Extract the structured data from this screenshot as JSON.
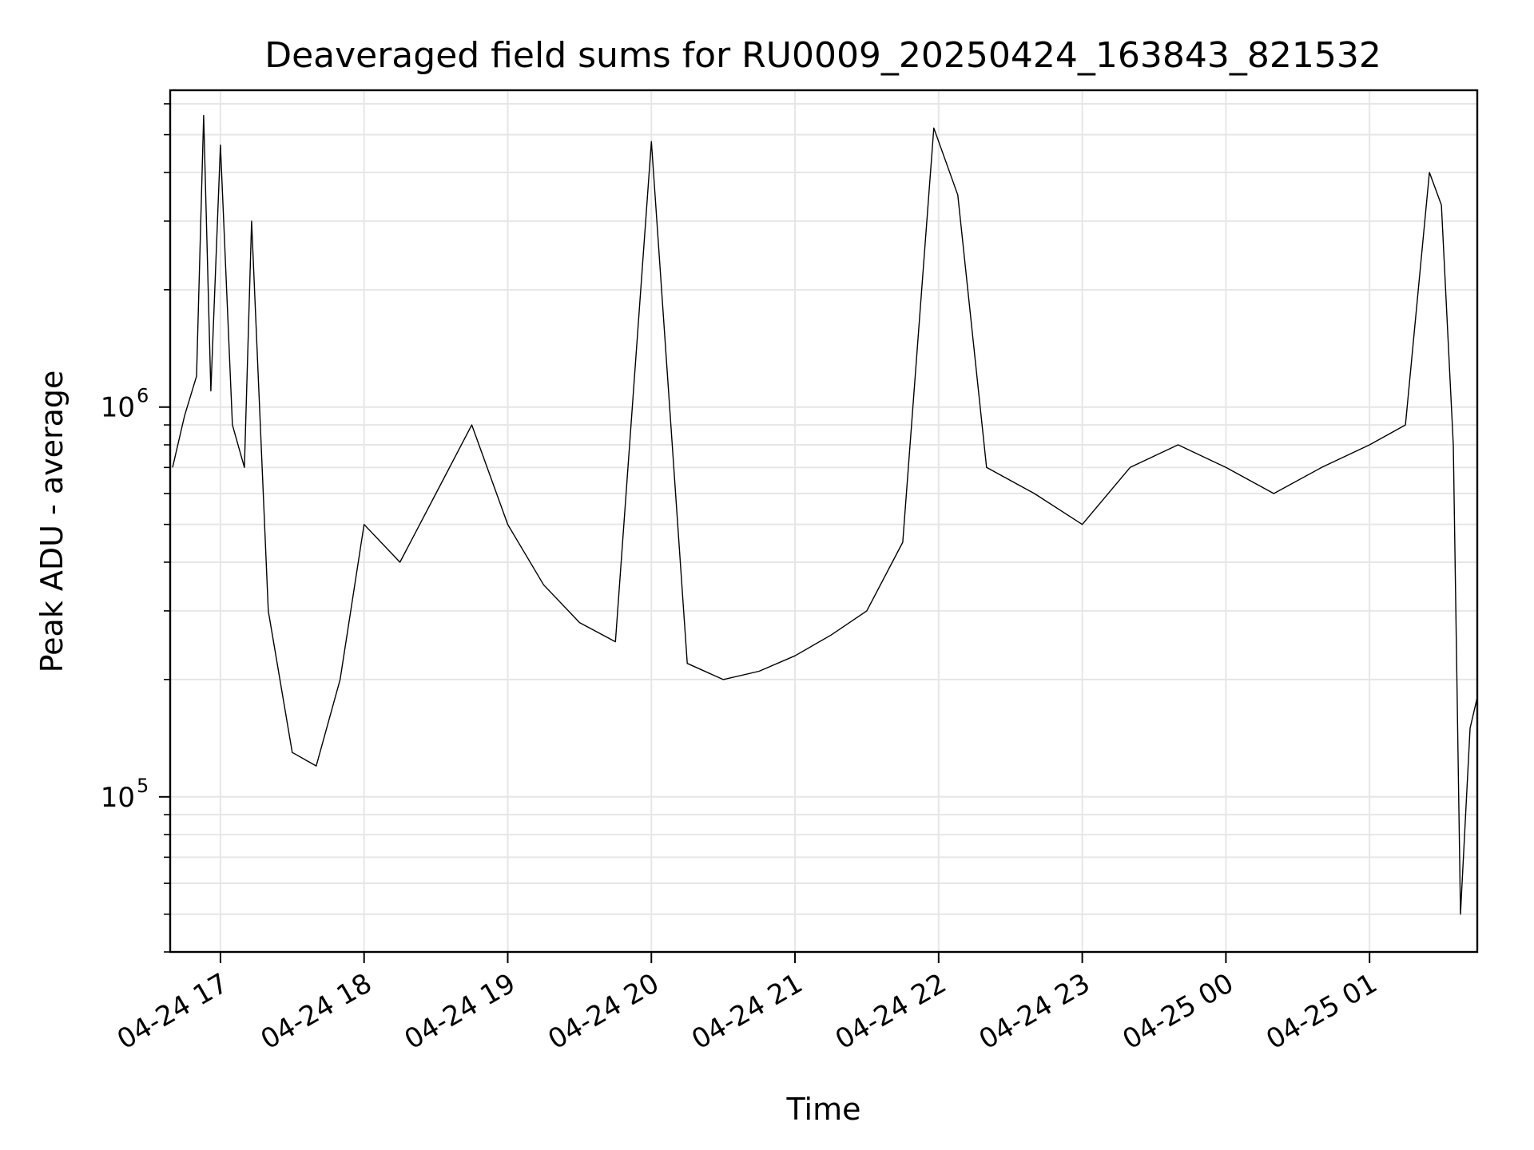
{
  "chart_data": {
    "type": "line",
    "title": "Deaveraged field sums for RU0009_20250424_163843_821532",
    "xlabel": "Time",
    "ylabel": "Peak ADU - average",
    "x_axis": "time",
    "xlim": [
      "2025-04-24 16:39",
      "2025-04-25 01:45"
    ],
    "y_scale": "log",
    "ylim": [
      40000,
      6500000
    ],
    "grid": true,
    "legend": "none",
    "line_color": "#000000",
    "x_ticks": [
      "04-24 17",
      "04-24 18",
      "04-24 19",
      "04-24 20",
      "04-24 21",
      "04-24 22",
      "04-24 23",
      "04-25 00",
      "04-25 01"
    ],
    "y_ticks": [
      {
        "value": 100000,
        "base": "10",
        "exp": "5"
      },
      {
        "value": 1000000,
        "base": "10",
        "exp": "6"
      }
    ],
    "series": [
      {
        "values": [
          [
            "2025-04-24 16:40",
            700000
          ],
          [
            "2025-04-24 16:45",
            950000
          ],
          [
            "2025-04-24 16:50",
            1200000
          ],
          [
            "2025-04-24 16:53",
            5600000
          ],
          [
            "2025-04-24 16:56",
            1100000
          ],
          [
            "2025-04-24 17:00",
            4700000
          ],
          [
            "2025-04-24 17:05",
            900000
          ],
          [
            "2025-04-24 17:10",
            700000
          ],
          [
            "2025-04-24 17:13",
            3000000
          ],
          [
            "2025-04-24 17:20",
            300000
          ],
          [
            "2025-04-24 17:30",
            130000
          ],
          [
            "2025-04-24 17:40",
            120000
          ],
          [
            "2025-04-24 17:50",
            200000
          ],
          [
            "2025-04-24 18:00",
            500000
          ],
          [
            "2025-04-24 18:15",
            400000
          ],
          [
            "2025-04-24 18:30",
            600000
          ],
          [
            "2025-04-24 18:45",
            900000
          ],
          [
            "2025-04-24 19:00",
            500000
          ],
          [
            "2025-04-24 19:15",
            350000
          ],
          [
            "2025-04-24 19:30",
            280000
          ],
          [
            "2025-04-24 19:45",
            250000
          ],
          [
            "2025-04-24 20:00",
            4800000
          ],
          [
            "2025-04-24 20:15",
            220000
          ],
          [
            "2025-04-24 20:30",
            200000
          ],
          [
            "2025-04-24 20:45",
            210000
          ],
          [
            "2025-04-24 21:00",
            230000
          ],
          [
            "2025-04-24 21:15",
            260000
          ],
          [
            "2025-04-24 21:30",
            300000
          ],
          [
            "2025-04-24 21:45",
            450000
          ],
          [
            "2025-04-24 21:58",
            5200000
          ],
          [
            "2025-04-24 22:08",
            3500000
          ],
          [
            "2025-04-24 22:20",
            700000
          ],
          [
            "2025-04-24 22:40",
            600000
          ],
          [
            "2025-04-24 23:00",
            500000
          ],
          [
            "2025-04-24 23:20",
            700000
          ],
          [
            "2025-04-24 23:40",
            800000
          ],
          [
            "2025-04-25 00:00",
            700000
          ],
          [
            "2025-04-25 00:20",
            600000
          ],
          [
            "2025-04-25 00:40",
            700000
          ],
          [
            "2025-04-25 01:00",
            800000
          ],
          [
            "2025-04-25 01:15",
            900000
          ],
          [
            "2025-04-25 01:25",
            4000000
          ],
          [
            "2025-04-25 01:30",
            3300000
          ],
          [
            "2025-04-25 01:35",
            800000
          ],
          [
            "2025-04-25 01:38",
            50000
          ],
          [
            "2025-04-25 01:42",
            150000
          ],
          [
            "2025-04-25 01:45",
            180000
          ]
        ]
      }
    ]
  }
}
